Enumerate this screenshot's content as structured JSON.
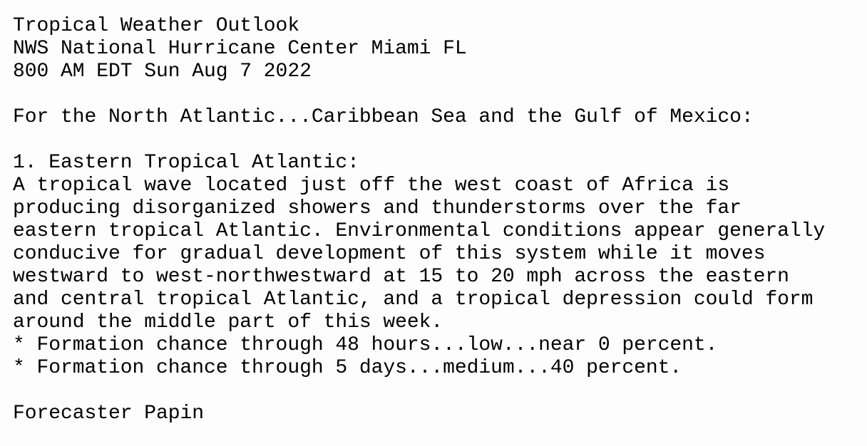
{
  "header": {
    "title": "Tropical Weather Outlook",
    "office": "NWS National Hurricane Center Miami FL",
    "issued": "800 AM EDT Sun Aug 7 2022"
  },
  "intro": "For the North Atlantic...Caribbean Sea and the Gulf of Mexico:",
  "system": {
    "heading": "1. Eastern Tropical Atlantic:",
    "lines": [
      "A tropical wave located just off the west coast of Africa is",
      "producing disorganized showers and thunderstorms over the far",
      "eastern tropical Atlantic. Environmental conditions appear generally",
      "conducive for gradual development of this system while it moves",
      "westward to west-northwestward at 15 to 20 mph across the eastern",
      "and central tropical Atlantic, and a tropical depression could form",
      "around the middle part of this week."
    ],
    "chances": [
      "* Formation chance through 48 hours...low...near 0 percent.",
      "* Formation chance through 5 days...medium...40 percent."
    ]
  },
  "forecaster": "Forecaster Papin"
}
